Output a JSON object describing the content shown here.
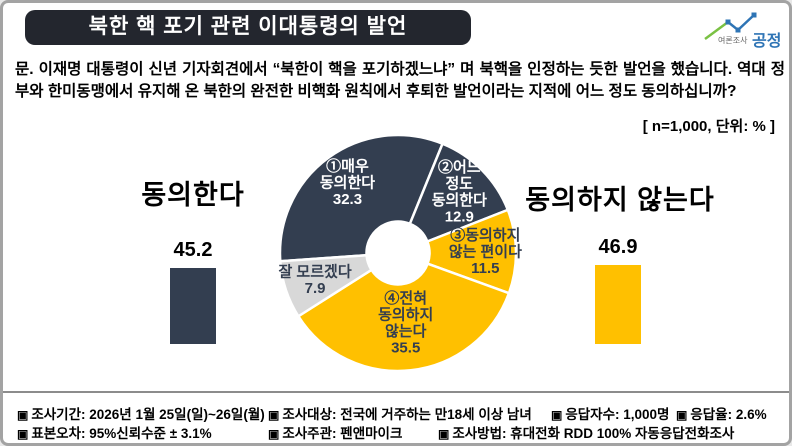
{
  "header": {
    "title": "북한 핵 포기 관련 이대통령의 발언",
    "title_bg": "#23262e",
    "logo": {
      "small_text": "여론조사",
      "brand_text": "공정",
      "brand_color": "#2e74b5",
      "line_green": "#7ac143",
      "line_blue": "#2e74b5"
    }
  },
  "question": {
    "text": "문. 이재명 대통령이 신년 기자회견에서 “북한이 핵을 포기하겠느냐” 며 북핵을 인정하는 듯한 발언을 했습니다. 역대 정부와 한미동맹에서 유지해 온 북한의 완전한 비핵화 원칙에서 후퇴한 발언이라는 지적에 어느 정도 동의하십니까?",
    "note": "[ n=1,000, 단위: % ]"
  },
  "chart_data": {
    "type": "pie",
    "subtype": "donut",
    "title": "북한 핵 포기 관련 이대통령의 발언",
    "unit": "%",
    "n": "1,000",
    "start_angle_clockwise_from_top": 266,
    "segments": [
      {
        "label": "①매우 동의한다",
        "lines": [
          "①매우",
          "동의한다"
        ],
        "value": 32.3,
        "color": "#333e50",
        "text_color": "#ffffff"
      },
      {
        "label": "②어느 정도 동의한다",
        "lines": [
          "②어느",
          "정도",
          "동의한다"
        ],
        "value": 12.9,
        "color": "#333e50",
        "text_color": "#ffffff"
      },
      {
        "label": "③동의하지 않는 편이다",
        "lines": [
          "③동의하지",
          "않는 편이다"
        ],
        "value": 11.5,
        "color": "#ffc000",
        "text_color": "#333e50"
      },
      {
        "label": "④전혀 동의하지 않는다",
        "lines": [
          "④전혀",
          "동의하지",
          "않는다"
        ],
        "value": 35.5,
        "color": "#ffc000",
        "text_color": "#333e50"
      },
      {
        "label": "잘 모르겠다",
        "lines": [
          "잘 모르겠다"
        ],
        "value": 7.9,
        "color": "#d8d8d8",
        "text_color": "#333e50"
      }
    ],
    "summary_bars": [
      {
        "label": "동의한다",
        "value": 45.2,
        "color": "#333e50"
      },
      {
        "label": "동의하지 않는다",
        "value": 46.9,
        "color": "#ffc000"
      }
    ]
  },
  "footer": {
    "bullet": "▣",
    "items": [
      {
        "label": "조사기간: 2026년 1월 25일(일)~26일(월)"
      },
      {
        "label": "조사대상: 전국에 거주하는 만18세 이상 남녀"
      },
      {
        "label": "응답자수: 1,000명"
      },
      {
        "label": "응답율: 2.6%"
      },
      {
        "label": "표본오차: 95%신뢰수준 ± 3.1%"
      },
      {
        "label": "조사주관: 펜앤마이크"
      },
      {
        "label": "조사방법: 휴대전화 RDD 100% 자동응답전화조사"
      }
    ]
  }
}
